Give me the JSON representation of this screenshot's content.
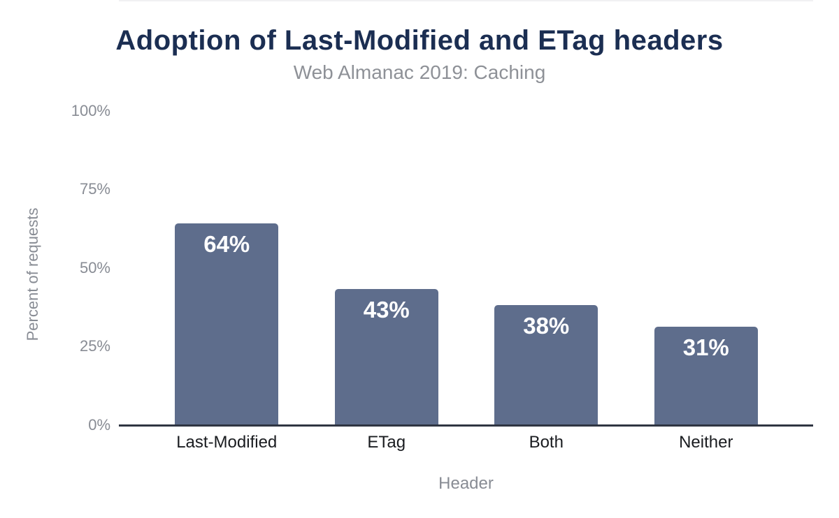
{
  "title": "Adoption of Last-Modified and ETag headers",
  "subtitle": "Web Almanac 2019: Caching",
  "colors": {
    "bar": "#5e6d8c",
    "title": "#1b2e52",
    "subtitle": "#8e9197",
    "axis_text": "#888c94",
    "category_text": "#1a1c20",
    "gridline": "#f1f1f3",
    "axis_line": "#2f3542",
    "value_label": "#ffffff",
    "background": "#ffffff"
  },
  "chart_data": {
    "type": "bar",
    "title": "Adoption of Last-Modified and ETag headers",
    "subtitle": "Web Almanac 2019: Caching",
    "categories": [
      "Last-Modified",
      "ETag",
      "Both",
      "Neither"
    ],
    "values": [
      64,
      43,
      38,
      31
    ],
    "value_labels": [
      "64%",
      "43%",
      "38%",
      "31%"
    ],
    "xlabel": "Header",
    "ylabel": "Percent of requests",
    "ylim": [
      0,
      100
    ],
    "ytick_labels": [
      "100%",
      "75%",
      "50%",
      "25%",
      "0%"
    ],
    "gridlines": "horizontal at 25% intervals",
    "legend": "none",
    "bar_label_position": "inside-top",
    "bar_color": "#5e6d8c"
  }
}
